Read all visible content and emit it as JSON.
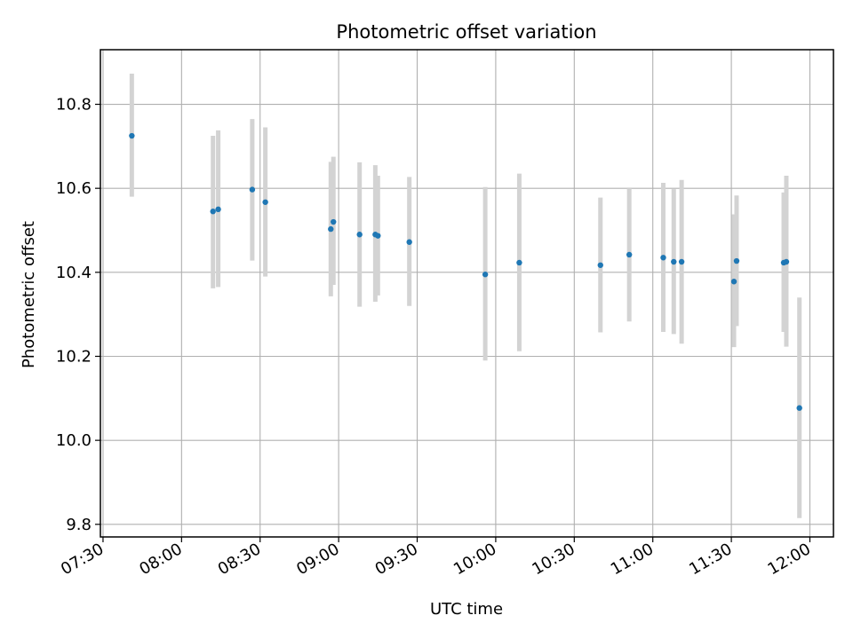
{
  "chart_data": {
    "type": "scatter",
    "title": "Photometric offset variation",
    "xlabel": "UTC time",
    "ylabel": "Photometric offset",
    "x_unit": "time of day (HH:MM, UTC)",
    "xlim": [
      "07:29",
      "12:09"
    ],
    "ylim": [
      9.77,
      10.93
    ],
    "x_ticks": [
      "07:30",
      "08:00",
      "08:30",
      "09:00",
      "09:30",
      "10:00",
      "10:30",
      "11:00",
      "11:30",
      "12:00"
    ],
    "y_ticks": [
      9.8,
      10.0,
      10.2,
      10.4,
      10.6,
      10.8
    ],
    "y_tick_labels": [
      "9.8",
      "10.0",
      "10.2",
      "10.4",
      "10.6",
      "10.8"
    ],
    "grid": true,
    "legend": null,
    "point_color": "#1f77b4",
    "errorbar_color": "#d3d3d3",
    "series": [
      {
        "points": [
          {
            "x": "07:41",
            "y": 10.725,
            "ylow": 10.58,
            "yhigh": 10.873
          },
          {
            "x": "08:12",
            "y": 10.545,
            "ylow": 10.362,
            "yhigh": 10.725
          },
          {
            "x": "08:14",
            "y": 10.55,
            "ylow": 10.365,
            "yhigh": 10.738
          },
          {
            "x": "08:27",
            "y": 10.597,
            "ylow": 10.428,
            "yhigh": 10.765
          },
          {
            "x": "08:32",
            "y": 10.567,
            "ylow": 10.39,
            "yhigh": 10.745
          },
          {
            "x": "08:57",
            "y": 10.503,
            "ylow": 10.343,
            "yhigh": 10.663
          },
          {
            "x": "08:58",
            "y": 10.52,
            "ylow": 10.37,
            "yhigh": 10.675
          },
          {
            "x": "09:08",
            "y": 10.49,
            "ylow": 10.318,
            "yhigh": 10.662
          },
          {
            "x": "09:14",
            "y": 10.49,
            "ylow": 10.33,
            "yhigh": 10.655
          },
          {
            "x": "09:15",
            "y": 10.487,
            "ylow": 10.345,
            "yhigh": 10.63
          },
          {
            "x": "09:27",
            "y": 10.472,
            "ylow": 10.32,
            "yhigh": 10.627
          },
          {
            "x": "09:56",
            "y": 10.395,
            "ylow": 10.19,
            "yhigh": 10.603
          },
          {
            "x": "10:09",
            "y": 10.423,
            "ylow": 10.212,
            "yhigh": 10.635
          },
          {
            "x": "10:40",
            "y": 10.417,
            "ylow": 10.257,
            "yhigh": 10.578
          },
          {
            "x": "10:51",
            "y": 10.442,
            "ylow": 10.283,
            "yhigh": 10.6
          },
          {
            "x": "11:04",
            "y": 10.435,
            "ylow": 10.258,
            "yhigh": 10.613
          },
          {
            "x": "11:08",
            "y": 10.425,
            "ylow": 10.253,
            "yhigh": 10.598
          },
          {
            "x": "11:11",
            "y": 10.425,
            "ylow": 10.23,
            "yhigh": 10.62
          },
          {
            "x": "11:31",
            "y": 10.378,
            "ylow": 10.222,
            "yhigh": 10.538
          },
          {
            "x": "11:32",
            "y": 10.427,
            "ylow": 10.272,
            "yhigh": 10.583
          },
          {
            "x": "11:50",
            "y": 10.423,
            "ylow": 10.258,
            "yhigh": 10.59
          },
          {
            "x": "11:51",
            "y": 10.425,
            "ylow": 10.223,
            "yhigh": 10.63
          },
          {
            "x": "11:56",
            "y": 10.077,
            "ylow": 9.815,
            "yhigh": 10.34
          }
        ]
      }
    ]
  }
}
